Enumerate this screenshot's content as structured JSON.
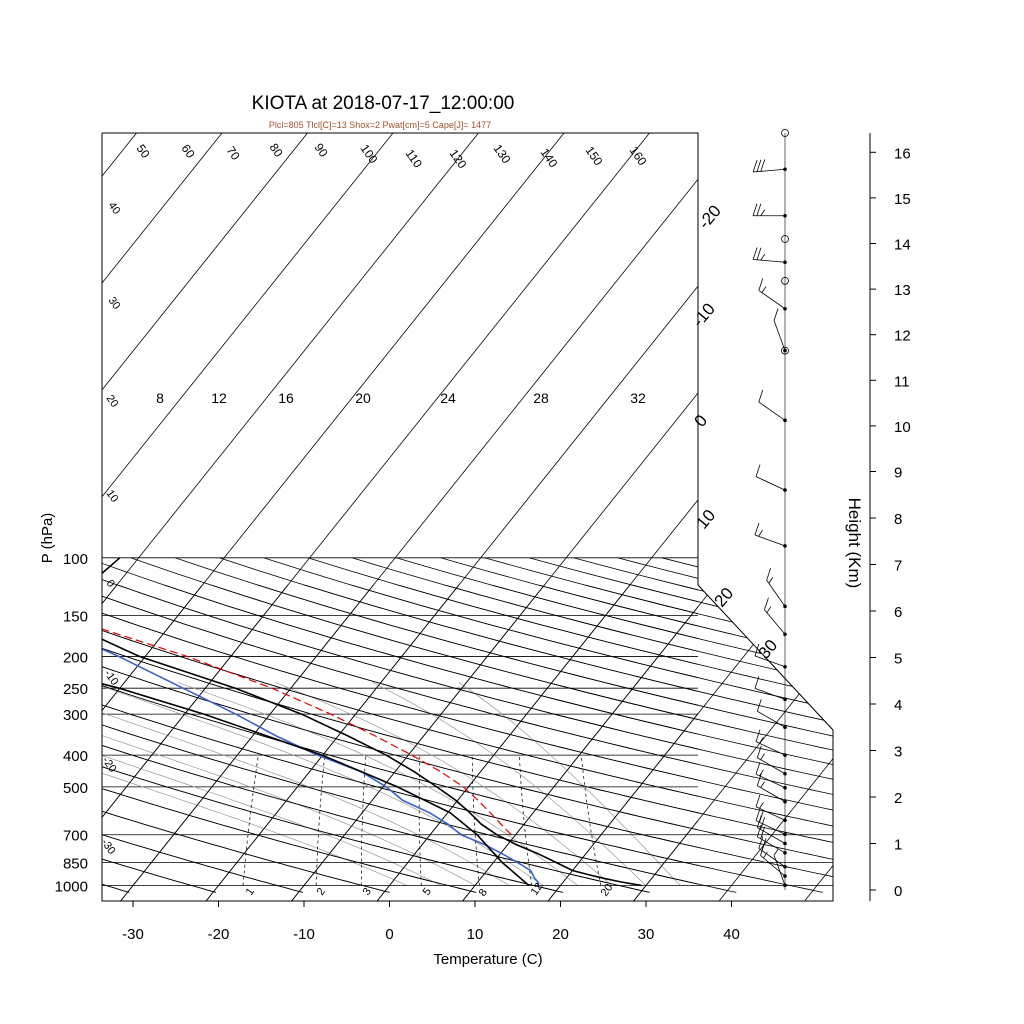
{
  "chart_data": {
    "type": "line",
    "title": "KIOTA at 2018-07-17_12:00:00",
    "subtitle": "Plcl=805 Tlcl[C]=13 Shox=2 Pwat[cm]=5 Cape[J]= 1477",
    "xlabel": "Temperature (C)",
    "ylabel": "P (hPa)",
    "right_label": "Height (Km)",
    "x_ticks": [
      -30,
      -20,
      -10,
      0,
      10,
      20,
      30,
      40
    ],
    "p_ticks": [
      100,
      150,
      200,
      250,
      300,
      400,
      500,
      700,
      850,
      1000
    ],
    "height_ticks": [
      0,
      1,
      2,
      3,
      4,
      5,
      6,
      7,
      8,
      9,
      10,
      11,
      12,
      13,
      14,
      15,
      16
    ],
    "theta_labels": [
      "50",
      "60",
      "70",
      "80",
      "90",
      "100",
      "110",
      "120",
      "130",
      "140",
      "150",
      "160"
    ],
    "isotherm_labels": [
      "40",
      "30",
      "20",
      "10",
      "0",
      "-10",
      "-20",
      "-30",
      "-20",
      "-10",
      "0",
      "10",
      "20",
      "30",
      "10",
      "20",
      "30"
    ],
    "thetae_labels": [
      "8",
      "12",
      "16",
      "20",
      "24",
      "28",
      "32"
    ],
    "mixing_labels": [
      "1",
      "2",
      "3",
      "5",
      "8",
      "12",
      "20"
    ],
    "series": [
      {
        "name": "",
        "color": "#000000",
        "pressure": [
          1000,
          975,
          950,
          925,
          900,
          850,
          800,
          750,
          700,
          650,
          600,
          550,
          500,
          450,
          400,
          350,
          300,
          250,
          200,
          175,
          150,
          125,
          100
        ],
        "values": [
          29.5,
          26.7,
          24.3,
          22.1,
          20.0,
          17.3,
          14.4,
          11.0,
          7.8,
          5.0,
          2.6,
          -0.2,
          -3.7,
          -7.7,
          -12.6,
          -18.8,
          -26.3,
          -36.5,
          -50.7,
          -57.3,
          -61.4,
          -63.5,
          -62.2
        ]
      },
      {
        "name": "",
        "color": "#3a62c9",
        "pressure": [
          1000,
          975,
          950,
          925,
          900,
          850,
          800,
          750,
          700,
          650,
          600,
          550,
          500,
          450,
          400,
          350,
          300,
          250,
          200,
          175,
          150,
          125,
          100
        ],
        "values": [
          17.4,
          17.0,
          16.3,
          15.7,
          15.1,
          12.8,
          10.2,
          7.3,
          3.6,
          1.1,
          -2.1,
          -6.4,
          -9.6,
          -13.9,
          -20.6,
          -27.2,
          -34.0,
          -42.6,
          -53.1,
          -60.0,
          -67.7,
          -74.9,
          -74.7
        ]
      },
      {
        "name": "",
        "color": "#000000",
        "pressure": [
          1000,
          850,
          700,
          600,
          500,
          400,
          300,
          250,
          200,
          150,
          100
        ],
        "values": [
          16.3,
          11.0,
          5.5,
          0.3,
          -8.3,
          -20.1,
          -37.7,
          -50.1,
          -67.3,
          -87.8,
          -115.5
        ]
      },
      {
        "name": "",
        "color": "#e00000",
        "dashed": true,
        "pressure": [
          700,
          650,
          600,
          550,
          500,
          450,
          400,
          350,
          300,
          250,
          200,
          150
        ],
        "values": [
          9.5,
          7.3,
          5.0,
          2.4,
          -0.6,
          -4.6,
          -9.6,
          -15.6,
          -22.9,
          -32.2,
          -45.1,
          -63.8
        ]
      }
    ],
    "wind_barbs": [
      {
        "height_km": 0.1,
        "dir": 200,
        "speed_kt": 5
      },
      {
        "height_km": 0.3,
        "dir": 230,
        "speed_kt": 15
      },
      {
        "height_km": 0.5,
        "dir": 235,
        "speed_kt": 20
      },
      {
        "height_km": 0.8,
        "dir": 240,
        "speed_kt": 20
      },
      {
        "height_km": 1.0,
        "dir": 240,
        "speed_kt": 20
      },
      {
        "height_km": 1.2,
        "dir": 245,
        "speed_kt": 20
      },
      {
        "height_km": 1.5,
        "dir": 245,
        "speed_kt": 15
      },
      {
        "height_km": 1.9,
        "dir": 240,
        "speed_kt": 15
      },
      {
        "height_km": 2.2,
        "dir": 245,
        "speed_kt": 15
      },
      {
        "height_km": 2.5,
        "dir": 240,
        "speed_kt": 15
      },
      {
        "height_km": 2.9,
        "dir": 245,
        "speed_kt": 15
      },
      {
        "height_km": 3.5,
        "dir": 240,
        "speed_kt": 10
      },
      {
        "height_km": 4.1,
        "dir": 250,
        "speed_kt": 10
      },
      {
        "height_km": 4.8,
        "dir": 250,
        "speed_kt": 10
      },
      {
        "height_km": 5.5,
        "dir": 220,
        "speed_kt": 15
      },
      {
        "height_km": 6.1,
        "dir": 215,
        "speed_kt": 15
      },
      {
        "height_km": 7.4,
        "dir": 250,
        "speed_kt": 15
      },
      {
        "height_km": 8.6,
        "dir": 245,
        "speed_kt": 10
      },
      {
        "height_km": 10.1,
        "dir": 235,
        "speed_kt": 10
      },
      {
        "height_km": 11.6,
        "dir": 200,
        "speed_kt": 10
      },
      {
        "height_km": 12.5,
        "dir": 235,
        "speed_kt": 15
      },
      {
        "height_km": 13.5,
        "dir": 265,
        "speed_kt": 25
      },
      {
        "height_km": 14.5,
        "dir": 270,
        "speed_kt": 25
      },
      {
        "height_km": 15.5,
        "dir": 275,
        "speed_kt": 30
      }
    ]
  }
}
